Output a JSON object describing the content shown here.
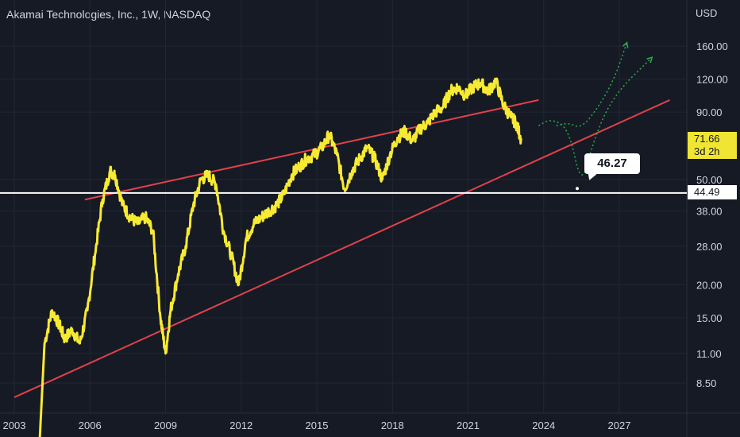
{
  "header": {
    "title": "Akamai Technologies, Inc., 1W, NASDAQ",
    "currency": "USD"
  },
  "badges": {
    "last_price": "71.66",
    "countdown": "3d 2h",
    "level": "44.49",
    "callout": "46.27"
  },
  "colors": {
    "background": "#161a25",
    "price_line": "#f7ea33",
    "trend_line": "#e0424a",
    "level_line": "#ffffff",
    "projection": "#2dad4a"
  },
  "chart_data": {
    "type": "line",
    "title": "Akamai Technologies, Inc., 1W, NASDAQ",
    "yscale": "log",
    "ylabel": "USD",
    "x_ticks": [
      "2003",
      "2006",
      "2009",
      "2012",
      "2015",
      "2018",
      "2021",
      "2024",
      "2027"
    ],
    "y_ticks": [
      "8.50",
      "11.00",
      "15.00",
      "20.00",
      "28.00",
      "38.00",
      "50.00",
      "90.00",
      "120.00",
      "160.00"
    ],
    "grid": true,
    "series": [
      {
        "x": [
          2004.0,
          2004.2,
          2004.5,
          2004.8,
          2005.0,
          2005.3,
          2005.6,
          2005.9,
          2006.2,
          2006.5,
          2006.8,
          2007.0,
          2007.3,
          2007.6,
          2007.9,
          2008.2,
          2008.5,
          2008.8,
          2009.0,
          2009.2,
          2009.5,
          2009.8,
          2010.1,
          2010.4,
          2010.7,
          2011.0,
          2011.3,
          2011.6,
          2011.9,
          2012.2,
          2012.5,
          2012.8,
          2013.1,
          2013.4,
          2013.7,
          2014.0,
          2014.3,
          2014.6,
          2014.9,
          2015.2,
          2015.5,
          2015.8,
          2016.1,
          2016.4,
          2016.7,
          2017.0,
          2017.3,
          2017.6,
          2017.9,
          2018.2,
          2018.5,
          2018.8,
          2019.1,
          2019.4,
          2019.7,
          2020.0,
          2020.3,
          2020.6,
          2020.9,
          2021.2,
          2021.5,
          2021.8,
          2022.1,
          2022.4,
          2022.7,
          2022.9,
          2023.1
        ],
        "y": [
          5.0,
          12.0,
          16.0,
          14.0,
          12.5,
          13.5,
          12.0,
          16.0,
          26.0,
          42.0,
          54.0,
          52.0,
          40.0,
          36.0,
          34.0,
          36.0,
          32.0,
          15.0,
          11.0,
          16.0,
          22.0,
          28.0,
          40.0,
          50.0,
          52.0,
          48.0,
          32.0,
          26.0,
          20.0,
          30.0,
          34.0,
          36.0,
          38.0,
          40.0,
          44.0,
          52.0,
          56.0,
          60.0,
          62.0,
          66.0,
          74.0,
          62.0,
          46.0,
          54.0,
          60.0,
          66.0,
          60.0,
          50.0,
          62.0,
          72.0,
          76.0,
          70.0,
          78.0,
          82.0,
          90.0,
          94.0,
          108.0,
          112.0,
          104.0,
          112.0,
          116.0,
          108.0,
          118.0,
          96.0,
          86.0,
          82.0,
          71.66
        ]
      }
    ],
    "annotations": [
      {
        "type": "horizontal_line",
        "value": 44.49,
        "label": "44.49"
      },
      {
        "type": "callout",
        "value": 46.27,
        "label": "46.27"
      },
      {
        "type": "trend_line_upper",
        "points": [
          [
            2005.8,
            42
          ],
          [
            2023.8,
            100
          ]
        ]
      },
      {
        "type": "trend_line_lower",
        "points": [
          [
            2003.0,
            7.5
          ],
          [
            2029.0,
            100
          ]
        ]
      },
      {
        "type": "projection_path",
        "points": [
          [
            2023.8,
            80
          ],
          [
            2024.3,
            85
          ],
          [
            2025.0,
            78
          ],
          [
            2025.5,
            46.27
          ],
          [
            2026.0,
            72
          ],
          [
            2026.8,
            105
          ],
          [
            2028.3,
            145
          ]
        ]
      },
      {
        "type": "projection_path",
        "points": [
          [
            2024.5,
            80
          ],
          [
            2025.0,
            82
          ],
          [
            2025.5,
            78
          ],
          [
            2026.2,
            95
          ],
          [
            2026.8,
            120
          ],
          [
            2027.3,
            165
          ]
        ]
      }
    ]
  }
}
